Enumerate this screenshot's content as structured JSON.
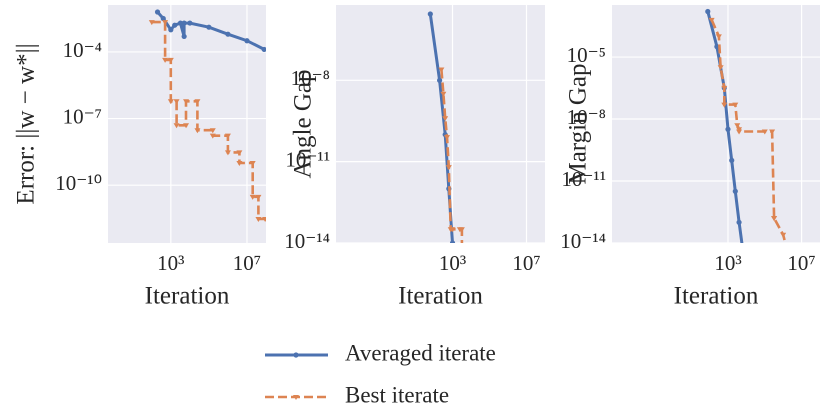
{
  "chart_data": [
    {
      "type": "line",
      "xlabel": "Iteration",
      "ylabel": "Error: ||w − w*||",
      "xscale": "log",
      "yscale": "log",
      "grid": true,
      "xlim": [
        0.5,
        100000000.0
      ],
      "ylim": [
        2.5e-13,
        0.013
      ],
      "xticks": [
        {
          "value": 1000,
          "label": "10³"
        },
        {
          "value": 10000000.0,
          "label": "10⁷"
        }
      ],
      "yticks": [
        {
          "value": 0.0001,
          "label": "10⁻⁴"
        },
        {
          "value": 1e-07,
          "label": "10⁻⁷"
        },
        {
          "value": 1e-10,
          "label": "10⁻¹⁰"
        }
      ],
      "series": [
        {
          "name": "Averaged iterate",
          "color": "#4c72b0",
          "dash": false,
          "marker": "circle",
          "x": [
            200,
            400,
            1000,
            1600,
            3200,
            5000,
            5000,
            10000,
            100000,
            1000000,
            10000000,
            80000000
          ],
          "values": [
            0.0063,
            0.0032,
            0.001,
            0.0016,
            0.002,
            0.0005,
            0.002,
            0.002,
            0.0013,
            0.00063,
            0.00032,
            0.00013
          ]
        },
        {
          "name": "Best iterate",
          "color": "#dd8452",
          "dash": true,
          "marker": "triangle",
          "x": [
            100,
            500,
            500,
            1000,
            1000,
            2000,
            2000,
            6300,
            6300,
            25000,
            25000,
            160000,
            160000,
            1000000,
            1000000,
            4000000,
            4000000,
            20000000,
            20000000,
            40000000,
            40000000,
            90000000
          ],
          "values": [
            0.0022,
            0.0022,
            4.4e-05,
            4.4e-05,
            6e-07,
            6e-07,
            5e-08,
            5e-08,
            6e-07,
            6e-07,
            3e-08,
            3e-08,
            1.7e-08,
            1.7e-08,
            3e-09,
            3e-09,
            1e-09,
            1e-09,
            3e-11,
            3e-11,
            3e-12,
            3e-12
          ]
        }
      ]
    },
    {
      "type": "line",
      "xlabel": "Iteration",
      "ylabel": "Angle Gap",
      "xscale": "log",
      "yscale": "log",
      "grid": true,
      "xlim": [
        0.0005,
        100000000.0
      ],
      "ylim": [
        1e-14,
        6e-06
      ],
      "xticks": [
        {
          "value": 1000,
          "label": "10³"
        },
        {
          "value": 10000000.0,
          "label": "10⁷"
        }
      ],
      "yticks": [
        {
          "value": 1e-08,
          "label": "10⁻⁸"
        },
        {
          "value": 1e-11,
          "label": "10⁻¹¹"
        },
        {
          "value": 1e-14,
          "label": "10⁻¹⁴"
        }
      ],
      "series": [
        {
          "name": "Averaged iterate",
          "color": "#4c72b0",
          "dash": false,
          "marker": "circle",
          "x": [
            63,
            200,
            400,
            630,
            1000,
            1300
          ],
          "values": [
            2.8e-06,
            1e-08,
            1e-10,
            1e-12,
            1e-14,
            5e-15
          ]
        },
        {
          "name": "Best iterate",
          "color": "#dd8452",
          "dash": true,
          "marker": "triangle",
          "x": [
            250,
            320,
            400,
            500,
            630,
            800,
            1000,
            2500,
            3200,
            3200
          ],
          "values": [
            2.5e-08,
            3.2e-09,
            4e-10,
            8e-11,
            6.3e-12,
            3.2e-14,
            3.2e-14,
            3.2e-14,
            3.2e-14,
            1e-15
          ]
        }
      ]
    },
    {
      "type": "line",
      "xlabel": "Iteration",
      "ylabel": "Margin Gap",
      "xscale": "log",
      "yscale": "log",
      "grid": true,
      "xlim": [
        0.0005,
        100000000.0
      ],
      "ylim": [
        1e-14,
        0.0033
      ],
      "xticks": [
        {
          "value": 1000,
          "label": "10³"
        },
        {
          "value": 10000000.0,
          "label": "10⁷"
        }
      ],
      "yticks": [
        {
          "value": 1e-05,
          "label": "10⁻⁵"
        },
        {
          "value": 1e-08,
          "label": "10⁻⁸"
        },
        {
          "value": 1e-11,
          "label": "10⁻¹¹"
        },
        {
          "value": 1e-14,
          "label": "10⁻¹⁴"
        }
      ],
      "series": [
        {
          "name": "Averaged iterate",
          "color": "#4c72b0",
          "dash": false,
          "marker": "circle",
          "x": [
            80,
            250,
            630,
            1000,
            1600,
            2500,
            4000,
            6300
          ],
          "values": [
            0.0016,
            3.2e-05,
            3.2e-07,
            3.2e-09,
            1e-10,
            3.2e-12,
            1e-13,
            5e-15
          ]
        },
        {
          "name": "Best iterate",
          "color": "#dd8452",
          "dash": true,
          "marker": "triangle",
          "x": [
            130,
            320,
            400,
            630,
            630,
            2500,
            3200,
            4000,
            4000,
            100000,
            250000,
            320000,
            320000,
            1000000,
            1600000
          ],
          "values": [
            0.00063,
            0.0001,
            3.2e-06,
            3.2e-07,
            5e-08,
            5e-08,
            5e-09,
            3.2e-09,
            2.5e-09,
            2.5e-09,
            2.5e-09,
            1.6e-13,
            1.6e-13,
            2.5e-14,
            5e-15
          ]
        }
      ]
    }
  ]
}
